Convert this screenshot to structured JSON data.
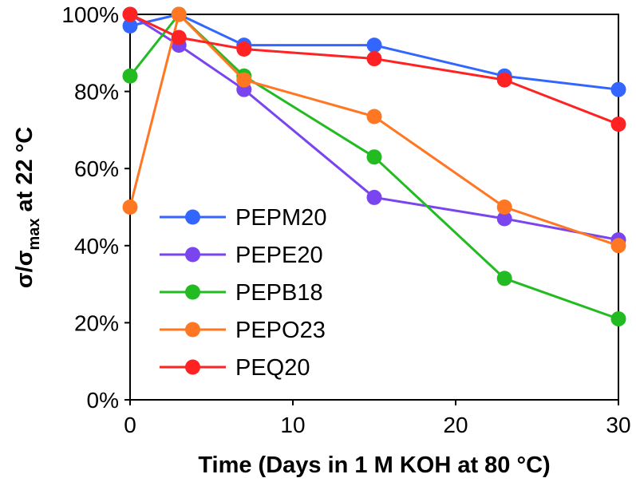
{
  "chart_data": {
    "type": "line",
    "title": "",
    "xlabel": "Time (Days in 1 M KOH at 80 °C)",
    "ylabel": "σ/σmax at 22 °C",
    "ylabel_parts": {
      "main": "σ/σ",
      "sub": "max",
      "rest": " at 22 °C"
    },
    "xlim": [
      0,
      30
    ],
    "ylim": [
      0,
      100
    ],
    "x_ticks": [
      0,
      10,
      20,
      30
    ],
    "x_tick_labels": [
      "0",
      "10",
      "20",
      "30"
    ],
    "y_ticks": [
      0,
      20,
      40,
      60,
      80,
      100
    ],
    "y_tick_labels": [
      "0%",
      "20%",
      "40%",
      "60%",
      "80%",
      "100%"
    ],
    "grid": false,
    "legend_position": "lower-left",
    "series": [
      {
        "name": "PEPM20",
        "color": "#3366ff",
        "x": [
          0,
          3,
          7,
          15,
          23,
          30
        ],
        "y": [
          97,
          100,
          92,
          92,
          84,
          80.5
        ]
      },
      {
        "name": "PEPE20",
        "color": "#7a44ee",
        "x": [
          0,
          3,
          7,
          15,
          23,
          30
        ],
        "y": [
          100,
          92,
          80.5,
          52.5,
          47,
          41.5
        ]
      },
      {
        "name": "PEPB18",
        "color": "#22bb22",
        "x": [
          0,
          3,
          7,
          15,
          23,
          30
        ],
        "y": [
          84,
          100,
          84,
          63,
          31.5,
          21
        ]
      },
      {
        "name": "PEPO23",
        "color": "#ff7722",
        "x": [
          0,
          3,
          7,
          15,
          23,
          30
        ],
        "y": [
          50,
          100,
          83,
          73.5,
          50,
          40
        ]
      },
      {
        "name": "PEQ20",
        "color": "#ff2222",
        "x": [
          0,
          3,
          7,
          15,
          23,
          30
        ],
        "y": [
          100,
          94,
          91,
          88.5,
          83,
          71.5
        ]
      }
    ]
  }
}
